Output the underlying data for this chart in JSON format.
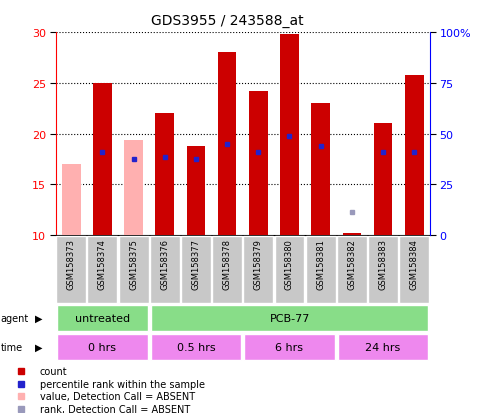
{
  "title": "GDS3955 / 243588_at",
  "samples": [
    "GSM158373",
    "GSM158374",
    "GSM158375",
    "GSM158376",
    "GSM158377",
    "GSM158378",
    "GSM158379",
    "GSM158380",
    "GSM158381",
    "GSM158382",
    "GSM158383",
    "GSM158384"
  ],
  "count_values": [
    null,
    25.0,
    null,
    22.0,
    18.8,
    28.0,
    24.2,
    29.8,
    23.0,
    10.2,
    21.0,
    25.8
  ],
  "absent_count_values": [
    17.0,
    null,
    19.4,
    null,
    null,
    null,
    null,
    null,
    null,
    null,
    null,
    null
  ],
  "rank_values": [
    null,
    18.2,
    17.5,
    17.7,
    17.5,
    19.0,
    18.2,
    19.8,
    18.8,
    null,
    18.2,
    18.2
  ],
  "absent_rank_values": [
    null,
    null,
    null,
    null,
    null,
    null,
    null,
    null,
    null,
    12.3,
    null,
    null
  ],
  "ylim_left": [
    10,
    30
  ],
  "ylim_right": [
    0,
    100
  ],
  "yticks_left": [
    10,
    15,
    20,
    25,
    30
  ],
  "yticks_right": [
    0,
    25,
    50,
    75,
    100
  ],
  "bar_width": 0.6,
  "red_color": "#CC0000",
  "pink_color": "#FFB0B0",
  "blue_color": "#2222CC",
  "light_blue_color": "#9999BB",
  "agent_untreated": "untreated",
  "agent_pcb": "PCB-77",
  "time_0": "0 hrs",
  "time_05": "0.5 hrs",
  "time_6": "6 hrs",
  "time_24": "24 hrs",
  "green_color": "#88DD88",
  "magenta_color": "#EE88EE",
  "gray_color": "#C8C8C8",
  "legend_items": [
    [
      "#CC0000",
      "count"
    ],
    [
      "#2222CC",
      "percentile rank within the sample"
    ],
    [
      "#FFB0B0",
      "value, Detection Call = ABSENT"
    ],
    [
      "#9999BB",
      "rank, Detection Call = ABSENT"
    ]
  ]
}
